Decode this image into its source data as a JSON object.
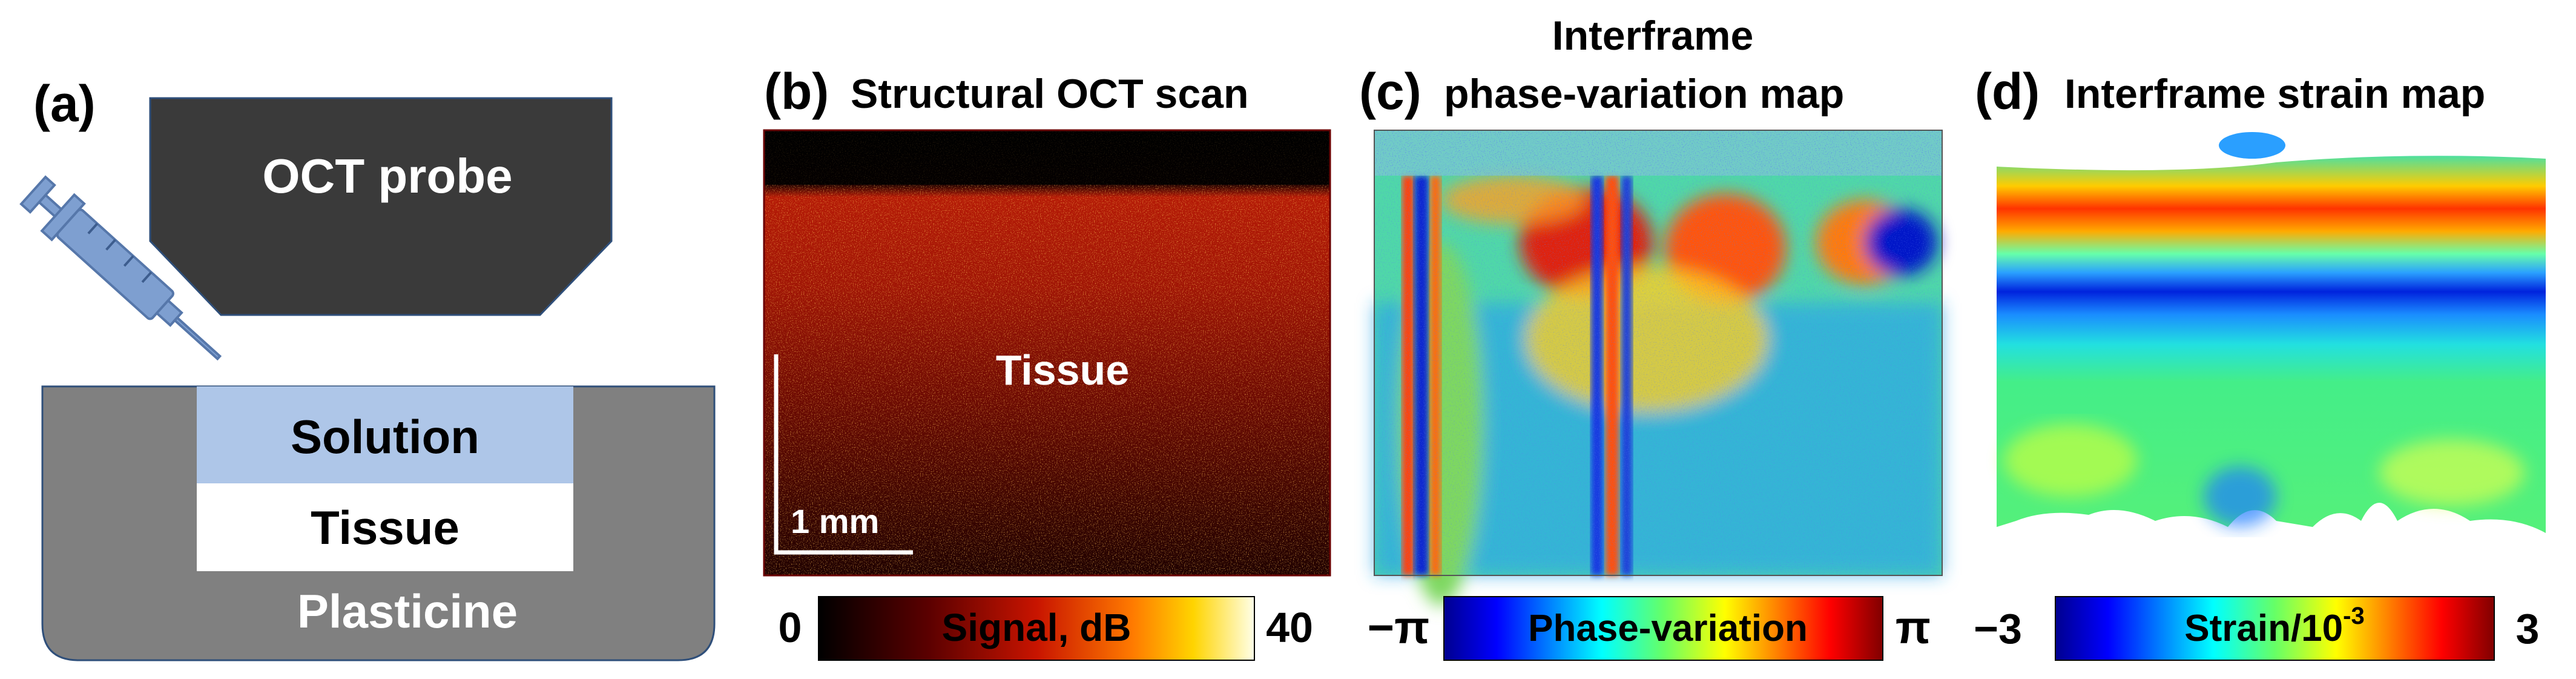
{
  "panels": {
    "a": {
      "label": "(a)",
      "probe_text": "OCT probe",
      "solution_text": "Solution",
      "tissue_text": "Tissue",
      "plasticine_text": "Plasticine"
    },
    "b": {
      "label": "(b)",
      "title": "Structural OCT scan",
      "tissue_text": "Tissue",
      "scale_text": "1 mm",
      "colorbar": {
        "min_label": "0",
        "max_label": "40",
        "name": "Signal, dB"
      }
    },
    "c": {
      "label": "(c)",
      "title_line1": "Interframe",
      "title_line2": "phase-variation map",
      "colorbar": {
        "min_label": "−π",
        "max_label": "π",
        "name": "Phase-variation"
      }
    },
    "d": {
      "label": "(d)",
      "title": "Interframe strain map",
      "colorbar": {
        "min_label": "−3",
        "max_label": "3",
        "name_prefix": "Strain/10",
        "name_exponent": "-3"
      }
    }
  },
  "colors": {
    "probe": "#3a3a3a",
    "plasticine": "#808080",
    "solution": "#aec6e8",
    "syringe": "#7e9fd0"
  }
}
